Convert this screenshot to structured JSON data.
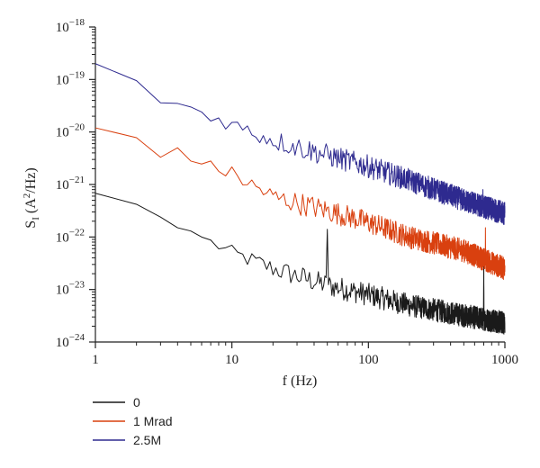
{
  "chart_data": {
    "type": "line",
    "xscale": "log",
    "yscale": "log",
    "xlim": [
      1,
      1000
    ],
    "ylim": [
      1e-24,
      1e-18
    ],
    "xlabel": {
      "main": "f (Hz)"
    },
    "ylabel": {
      "main": "S",
      "sub": "I",
      "rest_open": " (A",
      "sup": "2",
      "rest_close": "/Hz)"
    },
    "x_ticks": [
      {
        "value": 1,
        "label": "1"
      },
      {
        "value": 10,
        "label": "10"
      },
      {
        "value": 100,
        "label": "100"
      },
      {
        "value": 1000,
        "label": "1000"
      }
    ],
    "y_ticks": [
      {
        "value": 1e-24,
        "base": "10",
        "exp": "-24"
      },
      {
        "value": 1e-23,
        "base": "10",
        "exp": "-23"
      },
      {
        "value": 1e-22,
        "base": "10",
        "exp": "-22"
      },
      {
        "value": 1e-21,
        "base": "10",
        "exp": "-21"
      },
      {
        "value": 1e-20,
        "base": "10",
        "exp": "-20"
      },
      {
        "value": 1e-19,
        "base": "10",
        "exp": "-19"
      },
      {
        "value": 1e-18,
        "base": "10",
        "exp": "-18"
      }
    ],
    "legend_placement": "bottom-left, below plot",
    "series": [
      {
        "name": "0",
        "color": "#1a1a1a",
        "x": [
          1,
          2,
          3,
          4,
          5,
          7,
          10,
          20,
          50,
          100,
          200,
          500,
          1000
        ],
        "y": [
          6.8e-22,
          4.2e-22,
          2.4e-22,
          1.5e-22,
          1.3e-22,
          8e-23,
          5e-23,
          2.5e-23,
          1.2e-23,
          8e-24,
          5e-24,
          3.2e-24,
          2.3e-24
        ],
        "noise": 0.22,
        "peaks": [
          {
            "f": 50,
            "value": 1.4e-22
          },
          {
            "f": 700,
            "value": 6e-23
          }
        ]
      },
      {
        "name": "1 Mrad",
        "color": "#d9400f",
        "x": [
          1,
          2,
          3,
          4,
          5,
          7,
          10,
          20,
          50,
          100,
          200,
          500,
          1000
        ],
        "y": [
          1.2e-20,
          7.8e-21,
          3.3e-21,
          5e-21,
          2.8e-21,
          2.2e-21,
          1.6e-21,
          5.8e-22,
          3.2e-22,
          1.9e-22,
          1e-22,
          5.5e-23,
          2.5e-23
        ],
        "noise": 0.22,
        "peaks": [
          {
            "f": 720,
            "value": 1.5e-22
          }
        ]
      },
      {
        "name": "2.5M",
        "color": "#2e2a8f",
        "x": [
          1,
          2,
          3,
          4,
          5,
          7,
          10,
          20,
          50,
          100,
          200,
          500,
          1000
        ],
        "y": [
          2e-19,
          9.5e-20,
          3.6e-20,
          3.5e-20,
          3e-20,
          2e-20,
          1.4e-20,
          7e-21,
          3.6e-21,
          2.2e-21,
          1.2e-21,
          5e-22,
          2.8e-22
        ],
        "noise": 0.22,
        "peaks": [
          {
            "f": 690,
            "value": 8e-22
          }
        ]
      }
    ]
  }
}
